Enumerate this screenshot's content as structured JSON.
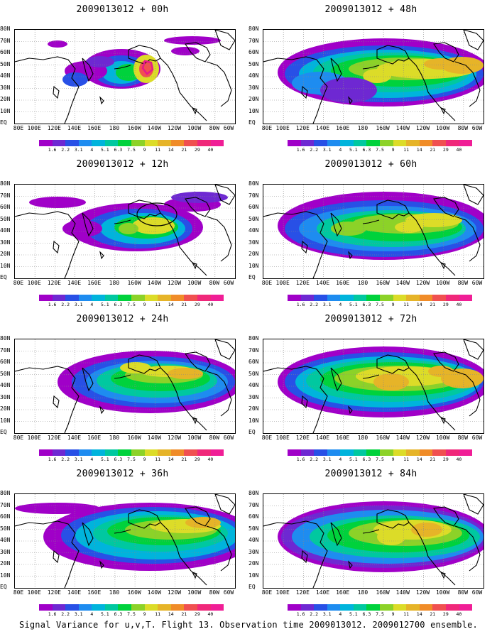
{
  "caption": "Signal Variance for u,v,T. Flight 13. Observation time 2009013012. 2009012700 ensemble.",
  "panels": [
    {
      "title": "2009013012 + 00h"
    },
    {
      "title": "2009013012 + 48h"
    },
    {
      "title": "2009013012 + 12h"
    },
    {
      "title": "2009013012 + 60h"
    },
    {
      "title": "2009013012 + 24h"
    },
    {
      "title": "2009013012 + 72h"
    },
    {
      "title": "2009013012 + 36h"
    },
    {
      "title": "2009013012 + 84h"
    }
  ],
  "lat_labels": [
    "80N",
    "70N",
    "60N",
    "50N",
    "40N",
    "30N",
    "20N",
    "10N",
    "EQ"
  ],
  "lon_labels": [
    "80E",
    "100E",
    "120E",
    "140E",
    "160E",
    "180",
    "160W",
    "140W",
    "120W",
    "100W",
    "80W",
    "60W"
  ],
  "colorbar": {
    "labels": [
      "1.6",
      "2.2",
      "3.1",
      "4",
      "5.1",
      "6.3",
      "7.5",
      "9",
      "11",
      "14",
      "21",
      "29",
      "40"
    ],
    "colors": [
      "#a000c8",
      "#6e28d2",
      "#2850e6",
      "#1e8cf0",
      "#00b4dc",
      "#00c8a0",
      "#00d23c",
      "#8cd228",
      "#dcdc28",
      "#e6b428",
      "#f08c28",
      "#f05050",
      "#f0287a",
      "#f01e96"
    ]
  },
  "legend_colors": {
    "contour": "#000000",
    "observation_marker": "#e6188c"
  },
  "map_extent": {
    "lon_range": [
      "80E",
      "60W"
    ],
    "lat_range": [
      "EQ",
      "80N"
    ]
  }
}
